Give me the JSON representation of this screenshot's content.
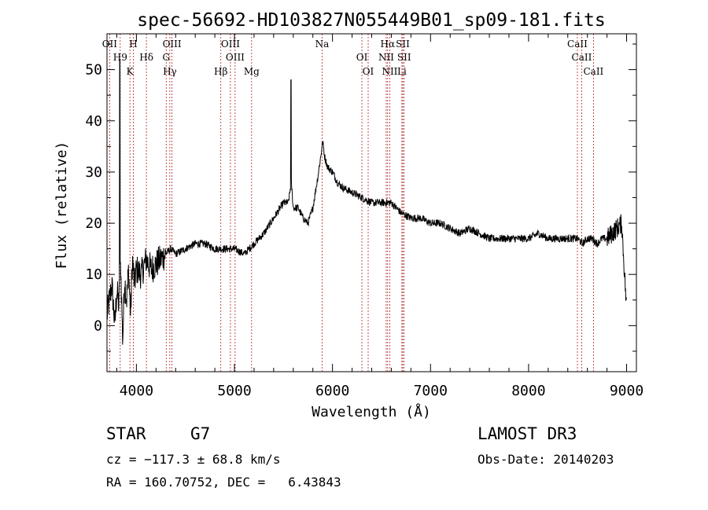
{
  "chart_data": {
    "type": "line",
    "title": "spec-56692-HD103827N055449B01_sp09-181.fits",
    "xlabel": "Wavelength (Å)",
    "ylabel": "Flux (relative)",
    "xlim": [
      3700,
      9100
    ],
    "ylim": [
      -9,
      57
    ],
    "xticks": [
      4000,
      5000,
      6000,
      7000,
      8000,
      9000
    ],
    "yticks": [
      0,
      10,
      20,
      30,
      40,
      50
    ],
    "series": [
      {
        "name": "spectrum",
        "x": [
          3700,
          3750,
          3780,
          3800,
          3820,
          3840,
          3860,
          3880,
          3900,
          3920,
          3940,
          3960,
          3980,
          4000,
          4050,
          4100,
          4150,
          4200,
          4250,
          4300,
          4350,
          4400,
          4500,
          4600,
          4700,
          4800,
          4900,
          5000,
          5100,
          5200,
          5300,
          5400,
          5500,
          5550,
          5580,
          5600,
          5650,
          5700,
          5750,
          5800,
          5850,
          5880,
          5900,
          5920,
          5950,
          6000,
          6050,
          6100,
          6200,
          6300,
          6400,
          6500,
          6600,
          6700,
          6800,
          6900,
          7000,
          7100,
          7200,
          7300,
          7400,
          7500,
          7600,
          7700,
          7800,
          7900,
          8000,
          8100,
          8200,
          8300,
          8400,
          8500,
          8550,
          8600,
          8650,
          8700,
          8750,
          8800,
          8850,
          8900,
          8950,
          9000
        ],
        "y": [
          2,
          8,
          0,
          7,
          4,
          12,
          -3,
          9,
          5,
          11,
          2,
          13,
          8,
          11,
          10,
          13,
          11,
          12,
          13,
          14,
          15,
          14,
          15,
          16,
          16,
          15,
          15,
          15,
          14,
          16,
          18,
          21,
          24,
          24,
          28,
          23,
          23,
          21,
          20,
          23,
          29,
          33,
          36,
          33,
          31,
          30,
          28,
          27,
          26,
          25,
          24,
          24,
          24,
          22,
          21,
          21,
          20,
          20,
          19,
          18,
          19,
          18,
          17,
          17,
          17,
          17,
          17,
          18,
          17,
          17,
          17,
          17,
          16,
          17,
          17,
          16,
          17,
          17,
          18,
          19,
          20,
          3
        ]
      }
    ],
    "emission_lines": [
      {
        "label": "OII",
        "x": 3727
      },
      {
        "label": "H9",
        "x": 3835
      },
      {
        "label": "K",
        "x": 3934
      },
      {
        "label": "H",
        "x": 3969
      },
      {
        "label": "Hδ",
        "x": 4102
      },
      {
        "label": "Hγ",
        "x": 4341
      },
      {
        "label": "OIII",
        "x": 4363
      },
      {
        "label": "G",
        "x": 4304
      },
      {
        "label": "Hβ",
        "x": 4861
      },
      {
        "label": "OIII",
        "x": 4959
      },
      {
        "label": "OIII",
        "x": 5007
      },
      {
        "label": "Mg",
        "x": 5175
      },
      {
        "label": "Na",
        "x": 5894
      },
      {
        "label": "OI",
        "x": 6300
      },
      {
        "label": "OI",
        "x": 6364
      },
      {
        "label": "Hα",
        "x": 6563
      },
      {
        "label": "NII",
        "x": 6548
      },
      {
        "label": "NII",
        "x": 6584
      },
      {
        "label": "SII",
        "x": 6717
      },
      {
        "label": "SII",
        "x": 6731
      },
      {
        "label": "Li",
        "x": 6708
      },
      {
        "label": "CaII",
        "x": 8498
      },
      {
        "label": "CaII",
        "x": 8542
      },
      {
        "label": "CaII",
        "x": 8662
      }
    ]
  },
  "info": {
    "object_class": "STAR",
    "subclass": "G7",
    "survey": "LAMOST DR3",
    "velocity": "cz = −117.3 ± 68.8 km/s",
    "obs_date": "Obs-Date: 20140203",
    "coords": "RA = 160.70752, DEC =   6.43843"
  },
  "colors": {
    "line_marker": "#b22222",
    "spectrum": "#000000",
    "axis": "#000000"
  }
}
